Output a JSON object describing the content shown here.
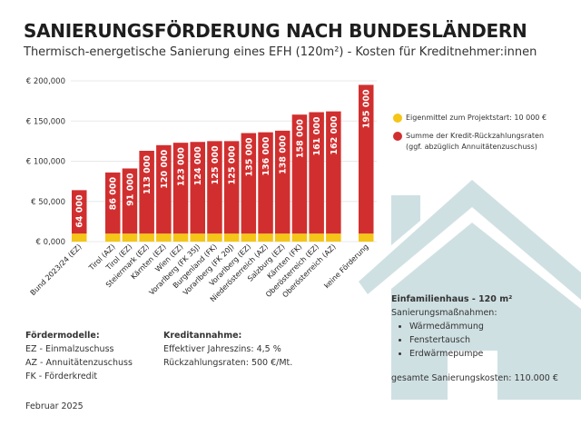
{
  "chart_data": {
    "type": "bar",
    "title": "SANIERUNGSFÖRDERUNG NACH BUNDESLÄNDERN",
    "subtitle": "Thermisch-energetische Sanierung eines EFH (120m²) - Kosten für Kreditnehmer:innen",
    "categories": [
      "Bund 2023/24 (EZ)",
      "Tirol (AZ)",
      "Tirol (EZ)",
      "Steiermark (EZ)",
      "Kärnten (EZ)",
      "Wien (EZ)",
      "Vorarlberg (FK 35J)",
      "Burgenland (FK)",
      "Vorarlberg (FK 20J)",
      "Vorarlberg (EZ)",
      "Niederösterreich (AZ)",
      "Salzburg (EZ)",
      "Kärnten (FK)",
      "Oberösterreich (EZ)",
      "Oberösterreich (AZ)",
      "keine Förderung"
    ],
    "series": [
      {
        "name": "Eigenmittel zum Projektstart: 10 000 €",
        "color": "#f5c518",
        "values": [
          10000,
          10000,
          10000,
          10000,
          10000,
          10000,
          10000,
          10000,
          10000,
          10000,
          10000,
          10000,
          10000,
          10000,
          10000,
          10000
        ]
      },
      {
        "name": "Summe der Kredit-Rückzahlungsraten (ggf. abzüglich Annuitätenzuschuss)",
        "color": "#d12f2f",
        "values": [
          54000,
          76000,
          81000,
          103000,
          110000,
          113000,
          114000,
          115000,
          115000,
          125000,
          126000,
          128000,
          148000,
          151000,
          152000,
          185000
        ]
      }
    ],
    "data_labels": [
      "64 000",
      "86 000",
      "91 000",
      "113 000",
      "120 000",
      "123 000",
      "124 000",
      "125 000",
      "125 000",
      "135 000",
      "136 000",
      "138 000",
      "158 000",
      "161 000",
      "162 000",
      "195 000"
    ],
    "yticks": [
      "€ 0,000",
      "€ 50,000",
      "€ 100,000",
      "€ 150,000",
      "€ 200,000"
    ],
    "ylim": [
      0,
      200000
    ],
    "grid": true,
    "stacked": true,
    "legend_position": "right"
  },
  "legend": {
    "item1": "Eigenmittel zum Projektstart: 10 000 €",
    "item2a": "Summe der Kredit-Rückzahlungsraten",
    "item2b": "(ggf. abzüglich Annuitätenzuschuss)"
  },
  "foerdermodelle": {
    "heading": "Fördermodelle:",
    "lines": [
      "EZ - Einmalzuschuss",
      "AZ - Annuitätenzuschuss",
      "FK - Förderkredit"
    ]
  },
  "kredit": {
    "heading": "Kreditannahme:",
    "lines": [
      "Effektiver Jahreszins: 4,5 %",
      "Rückzahlungsraten: 500 €/Mt."
    ]
  },
  "house": {
    "heading": "Einfamilienhaus - 120 m²",
    "sub": "Sanierungsmaßnahmen:",
    "items": [
      "Wärmedämmung",
      "Fenstertausch",
      "Erdwärmepumpe"
    ],
    "total": "gesamte Sanierungskosten: 110.000 €",
    "color": "#cfe0e3"
  },
  "date": "Februar 2025"
}
